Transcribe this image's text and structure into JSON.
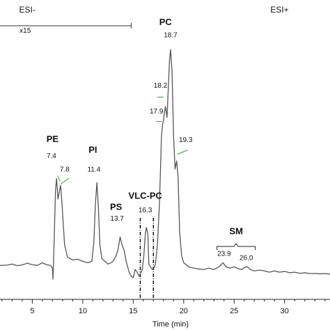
{
  "chart_data": {
    "type": "line",
    "xlabel": "Time (min)",
    "xlim": [
      1.8,
      34.5
    ],
    "xticks": [
      5,
      10,
      15,
      20,
      25,
      30
    ],
    "ylim": [
      0,
      100
    ],
    "modes": [
      {
        "text": "ESI-",
        "x": 4.5,
        "y": 96
      },
      {
        "text": "ESI+",
        "x": 29.5,
        "y": 96
      }
    ],
    "scale_note": {
      "text": "x15",
      "x": 4.3,
      "y": 92,
      "bracket_x": [
        1.8,
        14.8
      ]
    },
    "series": [
      {
        "color": "#555555",
        "points": [
          [
            1.8,
            12.5
          ],
          [
            2.5,
            12.6
          ],
          [
            3.0,
            13.0
          ],
          [
            3.5,
            12.4
          ],
          [
            4.0,
            12.7
          ],
          [
            4.5,
            13.3
          ],
          [
            5.0,
            12.8
          ],
          [
            5.5,
            12.5
          ],
          [
            6.0,
            13.5
          ],
          [
            6.4,
            12.8
          ],
          [
            6.8,
            12.5
          ],
          [
            7.0,
            11.5
          ],
          [
            7.05,
            7.5
          ],
          [
            7.15,
            20.0
          ],
          [
            7.3,
            40.0
          ],
          [
            7.4,
            44.5
          ],
          [
            7.55,
            37.0
          ],
          [
            7.7,
            40.0
          ],
          [
            7.8,
            42.0
          ],
          [
            7.95,
            35.0
          ],
          [
            8.2,
            20.0
          ],
          [
            8.5,
            15.5
          ],
          [
            9.0,
            14.5
          ],
          [
            9.5,
            14.8
          ],
          [
            10.0,
            14.0
          ],
          [
            10.5,
            13.5
          ],
          [
            10.9,
            14.0
          ],
          [
            11.1,
            21.0
          ],
          [
            11.25,
            35.0
          ],
          [
            11.4,
            43.0
          ],
          [
            11.55,
            34.0
          ],
          [
            11.7,
            20.0
          ],
          [
            11.9,
            15.0
          ],
          [
            12.2,
            14.0
          ],
          [
            12.5,
            13.0
          ],
          [
            12.8,
            13.5
          ],
          [
            13.0,
            14.0
          ],
          [
            13.3,
            16.0
          ],
          [
            13.5,
            18.5
          ],
          [
            13.7,
            23.0
          ],
          [
            13.9,
            20.0
          ],
          [
            14.1,
            18.0
          ],
          [
            14.3,
            14.0
          ],
          [
            14.6,
            10.0
          ],
          [
            14.8,
            8.5
          ],
          [
            15.0,
            8.0
          ],
          [
            15.2,
            11.0
          ],
          [
            15.4,
            10.0
          ],
          [
            15.6,
            8.5
          ],
          [
            15.9,
            11.0
          ],
          [
            16.05,
            16.0
          ],
          [
            16.2,
            24.0
          ],
          [
            16.3,
            26.5
          ],
          [
            16.45,
            24.0
          ],
          [
            16.55,
            13.0
          ],
          [
            16.7,
            12.0
          ],
          [
            16.9,
            11.0
          ],
          [
            17.05,
            11.5
          ],
          [
            17.2,
            13.0
          ],
          [
            17.4,
            20.0
          ],
          [
            17.6,
            35.0
          ],
          [
            17.8,
            60.0
          ],
          [
            17.9,
            64.0
          ],
          [
            18.0,
            66.0
          ],
          [
            18.1,
            69.0
          ],
          [
            18.2,
            71.0
          ],
          [
            18.35,
            67.0
          ],
          [
            18.5,
            80.0
          ],
          [
            18.6,
            88.0
          ],
          [
            18.7,
            92.0
          ],
          [
            18.85,
            84.0
          ],
          [
            19.0,
            60.0
          ],
          [
            19.15,
            48.0
          ],
          [
            19.3,
            51.0
          ],
          [
            19.45,
            45.0
          ],
          [
            19.6,
            25.0
          ],
          [
            19.8,
            16.0
          ],
          [
            20.0,
            13.5
          ],
          [
            20.5,
            12.0
          ],
          [
            21.0,
            11.5
          ],
          [
            21.5,
            11.2
          ],
          [
            22.0,
            11.0
          ],
          [
            22.5,
            11.5
          ],
          [
            23.0,
            11.0
          ],
          [
            23.5,
            12.0
          ],
          [
            23.9,
            13.5
          ],
          [
            24.2,
            12.0
          ],
          [
            24.6,
            11.5
          ],
          [
            25.0,
            12.0
          ],
          [
            25.4,
            11.3
          ],
          [
            25.8,
            11.0
          ],
          [
            26.0,
            11.8
          ],
          [
            26.3,
            12.0
          ],
          [
            26.6,
            11.0
          ],
          [
            27.0,
            10.5
          ],
          [
            27.5,
            10.8
          ],
          [
            28.0,
            10.5
          ],
          [
            28.5,
            10.0
          ],
          [
            29.0,
            10.5
          ],
          [
            29.5,
            10.0
          ],
          [
            30.0,
            10.3
          ],
          [
            30.5,
            9.8
          ],
          [
            31.0,
            10.0
          ],
          [
            31.5,
            9.6
          ],
          [
            32.0,
            9.8
          ],
          [
            32.5,
            9.5
          ],
          [
            33.0,
            9.6
          ],
          [
            33.5,
            9.4
          ],
          [
            34.0,
            9.5
          ],
          [
            34.5,
            9.3
          ]
        ]
      }
    ],
    "peak_labels": [
      {
        "text": "7.4",
        "x": 6.9,
        "y": 52
      },
      {
        "text": "7.8",
        "x": 8.2,
        "y": 47
      },
      {
        "text": "11.4",
        "x": 11.1,
        "y": 47
      },
      {
        "text": "13.7",
        "x": 13.4,
        "y": 29
      },
      {
        "text": "16.3",
        "x": 16.2,
        "y": 32
      },
      {
        "text": "18.2",
        "x": 17.7,
        "y": 78
      },
      {
        "text": "17.9",
        "x": 17.3,
        "y": 68.5
      },
      {
        "text": "18.7",
        "x": 18.7,
        "y": 96.5
      },
      {
        "text": "19.3",
        "x": 20.2,
        "y": 58
      },
      {
        "text": "23.9",
        "x": 24.0,
        "y": 16
      },
      {
        "text": "26.0",
        "x": 26.2,
        "y": 14.5
      }
    ],
    "class_labels": [
      {
        "text": "PE",
        "x": 7.0,
        "y": 58
      },
      {
        "text": "PI",
        "x": 11.0,
        "y": 54
      },
      {
        "text": "PS",
        "x": 13.3,
        "y": 33
      },
      {
        "text": "VLC-PC",
        "x": 16.2,
        "y": 37
      },
      {
        "text": "PC",
        "x": 18.2,
        "y": 101
      },
      {
        "text": "SM",
        "x": 25.2,
        "y": 24
      }
    ],
    "leader_lines": [
      {
        "x1": 7.5,
        "y1": 45.5,
        "x2": 7.75,
        "y2": 43.5
      },
      {
        "x1": 7.85,
        "y1": 42.5,
        "x2": 8.6,
        "y2": 44.5
      },
      {
        "x1": 17.4,
        "y1": 74.5,
        "x2": 18.0,
        "y2": 74.5
      },
      {
        "x1": 17.3,
        "y1": 65.5,
        "x2": 17.85,
        "y2": 65.5
      },
      {
        "x1": 19.4,
        "y1": 53.5,
        "x2": 20.4,
        "y2": 55.0
      }
    ],
    "cut_lines": [
      15.7,
      17.0
    ],
    "sm_bracket": {
      "x1": 23.3,
      "x2": 27.1,
      "y": 19.5
    }
  }
}
